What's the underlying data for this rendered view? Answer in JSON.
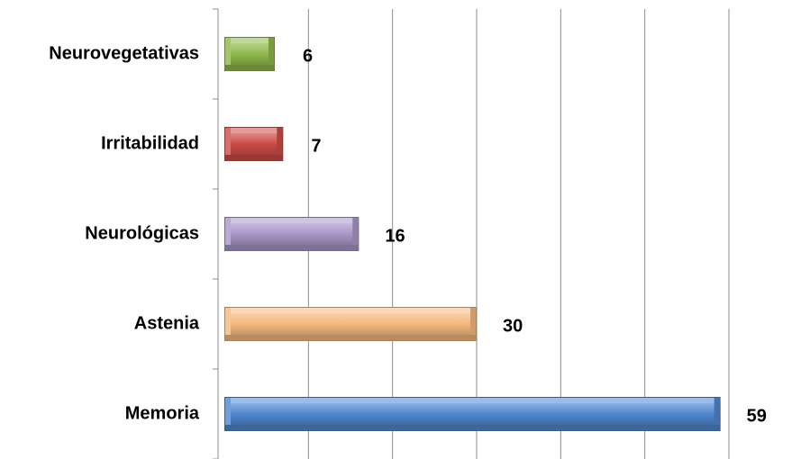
{
  "chart_data": {
    "type": "bar",
    "orientation": "horizontal",
    "categories": [
      "Neurovegetativas",
      "Irritabilidad",
      "Neurológicas",
      "Astenia",
      "Memoria"
    ],
    "values": [
      6,
      7,
      16,
      30,
      59
    ],
    "data_labels": [
      "6",
      "7",
      "16",
      "30",
      "59"
    ],
    "bar_colors": [
      "#8fb84a",
      "#cc4b45",
      "#a896c8",
      "#f5b87e",
      "#4f86cf"
    ],
    "xlim": [
      0,
      60
    ],
    "x_gridline_step": 10,
    "grid": true,
    "legend": "none"
  }
}
